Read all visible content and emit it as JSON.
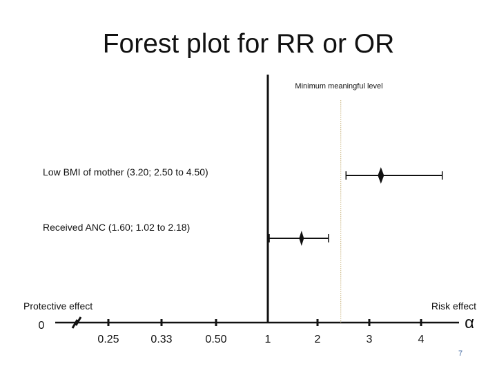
{
  "slide": {
    "title": "Forest plot for RR or OR",
    "page_number": "7"
  },
  "colors": {
    "threshold_label": "#c00000",
    "threshold_line": "#c8b27a",
    "ink": "#111111"
  },
  "chart_data": {
    "type": "forest",
    "scale": "log",
    "ticks": [
      {
        "label": "0",
        "value": 0
      },
      {
        "label": "0.25",
        "value": 0.25
      },
      {
        "label": "0.33",
        "value": 0.33
      },
      {
        "label": "0.50",
        "value": 0.5
      },
      {
        "label": "1",
        "value": 1
      },
      {
        "label": "2",
        "value": 2
      },
      {
        "label": "3",
        "value": 3
      },
      {
        "label": "4",
        "value": 4
      }
    ],
    "infinity_symbol": "α",
    "null_value": 1,
    "threshold": {
      "value": 2.4,
      "label": "Minimum meaningful level"
    },
    "left_annotation": "Protective effect",
    "right_annotation": "Risk effect",
    "studies": [
      {
        "label": "Low BMI of mother (3.20; 2.50 to 4.50)",
        "estimate": 3.2,
        "lower": 2.5,
        "upper": 4.5
      },
      {
        "label": "Received ANC (1.60; 1.02 to 2.18)",
        "estimate": 1.6,
        "lower": 1.02,
        "upper": 2.18
      }
    ]
  }
}
